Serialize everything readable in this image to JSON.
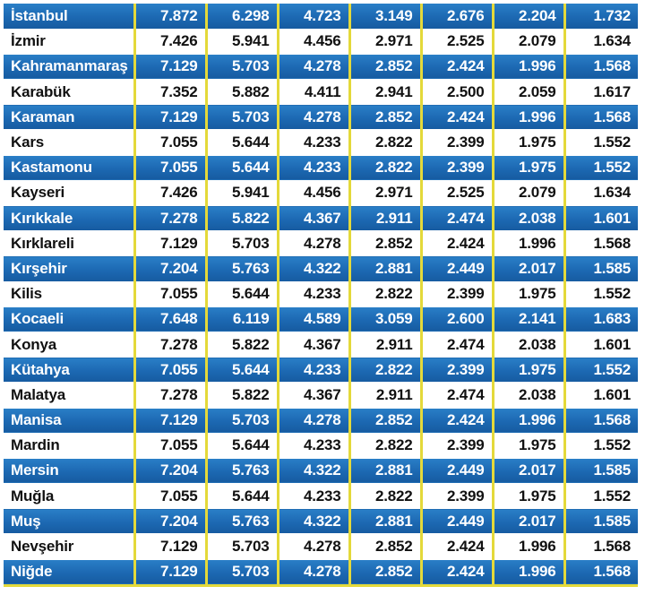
{
  "table": {
    "rows": [
      {
        "city": "İstanbul",
        "values": [
          "7.872",
          "6.298",
          "4.723",
          "3.149",
          "2.676",
          "2.204",
          "1.732"
        ],
        "style": "blue"
      },
      {
        "city": "İzmir",
        "values": [
          "7.426",
          "5.941",
          "4.456",
          "2.971",
          "2.525",
          "2.079",
          "1.634"
        ],
        "style": "white"
      },
      {
        "city": "Kahramanmaraş",
        "values": [
          "7.129",
          "5.703",
          "4.278",
          "2.852",
          "2.424",
          "1.996",
          "1.568"
        ],
        "style": "blue"
      },
      {
        "city": "Karabük",
        "values": [
          "7.352",
          "5.882",
          "4.411",
          "2.941",
          "2.500",
          "2.059",
          "1.617"
        ],
        "style": "white"
      },
      {
        "city": "Karaman",
        "values": [
          "7.129",
          "5.703",
          "4.278",
          "2.852",
          "2.424",
          "1.996",
          "1.568"
        ],
        "style": "blue"
      },
      {
        "city": "Kars",
        "values": [
          "7.055",
          "5.644",
          "4.233",
          "2.822",
          "2.399",
          "1.975",
          "1.552"
        ],
        "style": "white"
      },
      {
        "city": "Kastamonu",
        "values": [
          "7.055",
          "5.644",
          "4.233",
          "2.822",
          "2.399",
          "1.975",
          "1.552"
        ],
        "style": "blue"
      },
      {
        "city": "Kayseri",
        "values": [
          "7.426",
          "5.941",
          "4.456",
          "2.971",
          "2.525",
          "2.079",
          "1.634"
        ],
        "style": "white"
      },
      {
        "city": "Kırıkkale",
        "values": [
          "7.278",
          "5.822",
          "4.367",
          "2.911",
          "2.474",
          "2.038",
          "1.601"
        ],
        "style": "blue"
      },
      {
        "city": "Kırklareli",
        "values": [
          "7.129",
          "5.703",
          "4.278",
          "2.852",
          "2.424",
          "1.996",
          "1.568"
        ],
        "style": "white"
      },
      {
        "city": "Kırşehir",
        "values": [
          "7.204",
          "5.763",
          "4.322",
          "2.881",
          "2.449",
          "2.017",
          "1.585"
        ],
        "style": "blue"
      },
      {
        "city": "Kilis",
        "values": [
          "7.055",
          "5.644",
          "4.233",
          "2.822",
          "2.399",
          "1.975",
          "1.552"
        ],
        "style": "white"
      },
      {
        "city": "Kocaeli",
        "values": [
          "7.648",
          "6.119",
          "4.589",
          "3.059",
          "2.600",
          "2.141",
          "1.683"
        ],
        "style": "blue"
      },
      {
        "city": "Konya",
        "values": [
          "7.278",
          "5.822",
          "4.367",
          "2.911",
          "2.474",
          "2.038",
          "1.601"
        ],
        "style": "white"
      },
      {
        "city": "Kütahya",
        "values": [
          "7.055",
          "5.644",
          "4.233",
          "2.822",
          "2.399",
          "1.975",
          "1.552"
        ],
        "style": "blue"
      },
      {
        "city": "Malatya",
        "values": [
          "7.278",
          "5.822",
          "4.367",
          "2.911",
          "2.474",
          "2.038",
          "1.601"
        ],
        "style": "white"
      },
      {
        "city": "Manisa",
        "values": [
          "7.129",
          "5.703",
          "4.278",
          "2.852",
          "2.424",
          "1.996",
          "1.568"
        ],
        "style": "blue"
      },
      {
        "city": "Mardin",
        "values": [
          "7.055",
          "5.644",
          "4.233",
          "2.822",
          "2.399",
          "1.975",
          "1.552"
        ],
        "style": "white"
      },
      {
        "city": "Mersin",
        "values": [
          "7.204",
          "5.763",
          "4.322",
          "2.881",
          "2.449",
          "2.017",
          "1.585"
        ],
        "style": "blue"
      },
      {
        "city": "Muğla",
        "values": [
          "7.055",
          "5.644",
          "4.233",
          "2.822",
          "2.399",
          "1.975",
          "1.552"
        ],
        "style": "white"
      },
      {
        "city": "Muş",
        "values": [
          "7.204",
          "5.763",
          "4.322",
          "2.881",
          "2.449",
          "2.017",
          "1.585"
        ],
        "style": "blue"
      },
      {
        "city": "Nevşehir",
        "values": [
          "7.129",
          "5.703",
          "4.278",
          "2.852",
          "2.424",
          "1.996",
          "1.568"
        ],
        "style": "white"
      },
      {
        "city": "Niğde",
        "values": [
          "7.129",
          "5.703",
          "4.278",
          "2.852",
          "2.424",
          "1.996",
          "1.568"
        ],
        "style": "blue"
      }
    ]
  },
  "colors": {
    "row_blue": "#1c68b2",
    "row_white": "#ffffff",
    "divider": "#e4d93a",
    "text_on_blue": "#ffffff",
    "text_on_white": "#111111"
  }
}
